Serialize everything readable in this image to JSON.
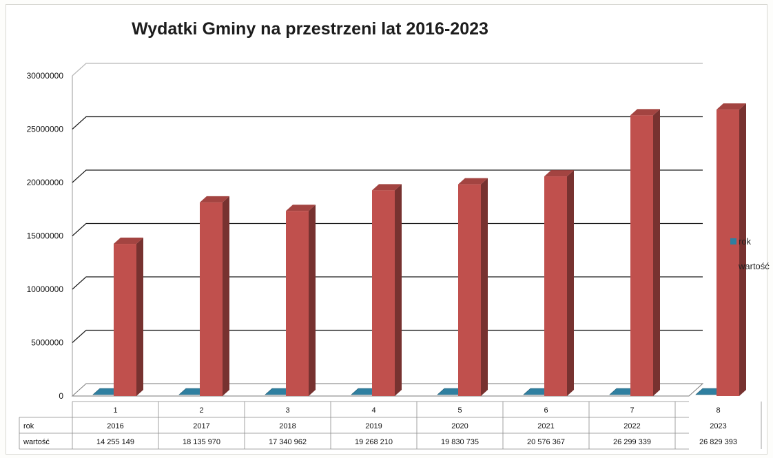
{
  "chart_data": {
    "type": "bar",
    "title": "Wydatki Gminy na przestrzeni lat 2016-2023",
    "categories": [
      "1",
      "2",
      "3",
      "4",
      "5",
      "6",
      "7",
      "8"
    ],
    "ylim": [
      0,
      30000000
    ],
    "yticks": [
      "0",
      "5000000",
      "10000000",
      "15000000",
      "20000000",
      "25000000",
      "30000000"
    ],
    "grid": true,
    "legend_position": "right",
    "series": [
      {
        "name": "rok",
        "values": [
          2016,
          2017,
          2018,
          2019,
          2020,
          2021,
          2022,
          2023
        ],
        "color": "#2f7fa0"
      },
      {
        "name": "wartość",
        "values": [
          14255149,
          18135970,
          17340962,
          19268210,
          19830735,
          20576367,
          26299339,
          26829393
        ],
        "color": "#c0504d"
      }
    ],
    "table": {
      "row_labels": [
        "rok",
        "wartość"
      ],
      "rows": [
        [
          "2016",
          "2017",
          "2018",
          "2019",
          "2020",
          "2021",
          "2022",
          "2023"
        ],
        [
          "14 255 149",
          "18 135 970",
          "17 340 962",
          "19 268 210",
          "19 830 735",
          "20 576 367",
          "26 299 339",
          "26 829 393"
        ]
      ]
    }
  }
}
